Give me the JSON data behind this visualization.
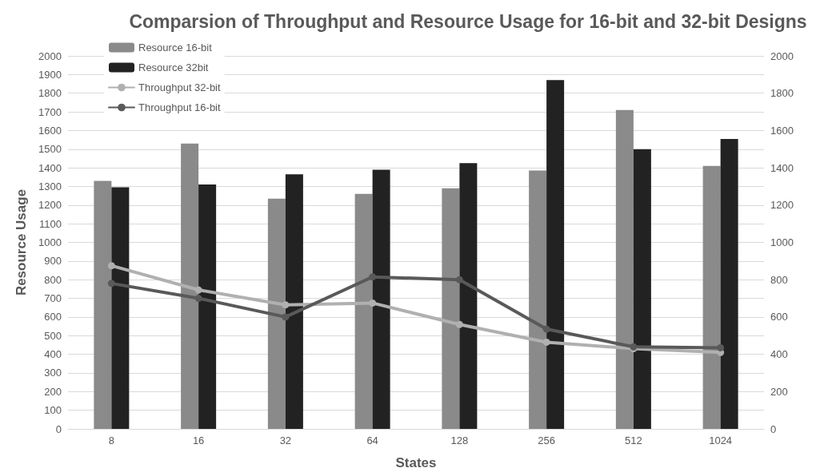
{
  "chart_data": {
    "type": "bar",
    "title": "Comparsion of Throughput and Resource Usage for 16-bit and 32-bit Designs",
    "xlabel": "States",
    "ylabel": "Resource Usage",
    "categories": [
      "8",
      "16",
      "32",
      "64",
      "128",
      "256",
      "512",
      "1024"
    ],
    "series": [
      {
        "name": "Resource 16-bit",
        "color": "#8a8a8a",
        "values": [
          1330,
          1530,
          1235,
          1260,
          1290,
          1385,
          1710,
          1410
        ]
      },
      {
        "name": "Resource 32bit",
        "color": "#222222",
        "values": [
          1295,
          1310,
          1365,
          1390,
          1425,
          1870,
          1500,
          1555
        ]
      },
      {
        "name": "Throughput 32-bit",
        "type": "line",
        "color": "#b0b0b0",
        "values": [
          875,
          745,
          665,
          675,
          560,
          465,
          430,
          410
        ]
      },
      {
        "name": "Throughput 16-bit",
        "type": "line",
        "color": "#595959",
        "values": [
          780,
          700,
          600,
          815,
          800,
          535,
          440,
          435
        ]
      }
    ],
    "ylim": [
      0,
      2000
    ],
    "yticks": [
      0,
      100,
      200,
      300,
      400,
      500,
      600,
      700,
      800,
      900,
      1000,
      1100,
      1200,
      1300,
      1400,
      1500,
      1600,
      1700,
      1800,
      1900,
      2000
    ],
    "y2lim": [
      0,
      2000
    ],
    "y2ticks": [
      0,
      200,
      400,
      600,
      800,
      1000,
      1200,
      1400,
      1600,
      1800,
      2000
    ],
    "grid": "y",
    "legend": "top left",
    "marker": "circle",
    "line_style": "solid"
  }
}
